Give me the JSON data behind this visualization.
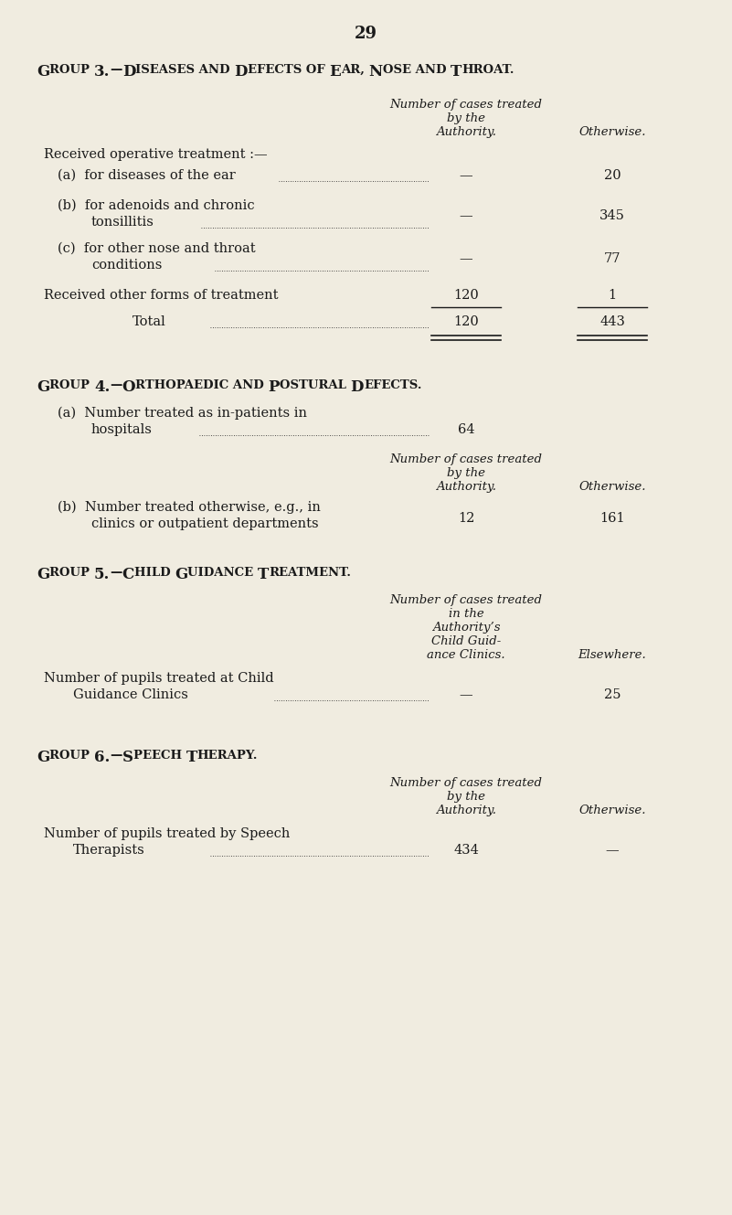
{
  "bg_color": "#f0ece0",
  "text_color": "#1a1a1a",
  "page_number": "29",
  "group3_title_parts": [
    {
      "text": "G",
      "big": true
    },
    {
      "text": "roup ",
      "big": false
    },
    {
      "text": "3.",
      "big": true
    },
    {
      "text": "—",
      "big": false
    },
    {
      "text": "D",
      "big": true
    },
    {
      "text": "iseases and ",
      "big": false
    },
    {
      "text": "D",
      "big": true
    },
    {
      "text": "efects of ",
      "big": false
    },
    {
      "text": "E",
      "big": true
    },
    {
      "text": "ar, ",
      "big": false
    },
    {
      "text": "N",
      "big": true
    },
    {
      "text": "ose and ",
      "big": false
    },
    {
      "text": "T",
      "big": true
    },
    {
      "text": "hroat.",
      "big": false
    }
  ],
  "group4_title_parts": [
    {
      "text": "G",
      "big": true
    },
    {
      "text": "roup ",
      "big": false
    },
    {
      "text": "4.",
      "big": true
    },
    {
      "text": "—",
      "big": false
    },
    {
      "text": "O",
      "big": true
    },
    {
      "text": "rthopaedic and ",
      "big": false
    },
    {
      "text": "P",
      "big": true
    },
    {
      "text": "ostural ",
      "big": false
    },
    {
      "text": "D",
      "big": true
    },
    {
      "text": "efects.",
      "big": false
    }
  ],
  "group5_title_parts": [
    {
      "text": "G",
      "big": true
    },
    {
      "text": "roup ",
      "big": false
    },
    {
      "text": "5.",
      "big": true
    },
    {
      "text": "—",
      "big": false
    },
    {
      "text": "C",
      "big": true
    },
    {
      "text": "hild ",
      "big": false
    },
    {
      "text": "G",
      "big": true
    },
    {
      "text": "uidance ",
      "big": false
    },
    {
      "text": "T",
      "big": true
    },
    {
      "text": "reatment.",
      "big": false
    }
  ],
  "group6_title_parts": [
    {
      "text": "G",
      "big": true
    },
    {
      "text": "roup ",
      "big": false
    },
    {
      "text": "6.",
      "big": true
    },
    {
      "text": "—",
      "big": false
    },
    {
      "text": "S",
      "big": true
    },
    {
      "text": "peech ",
      "big": false
    },
    {
      "text": "T",
      "big": true
    },
    {
      "text": "herapy.",
      "big": false
    }
  ]
}
